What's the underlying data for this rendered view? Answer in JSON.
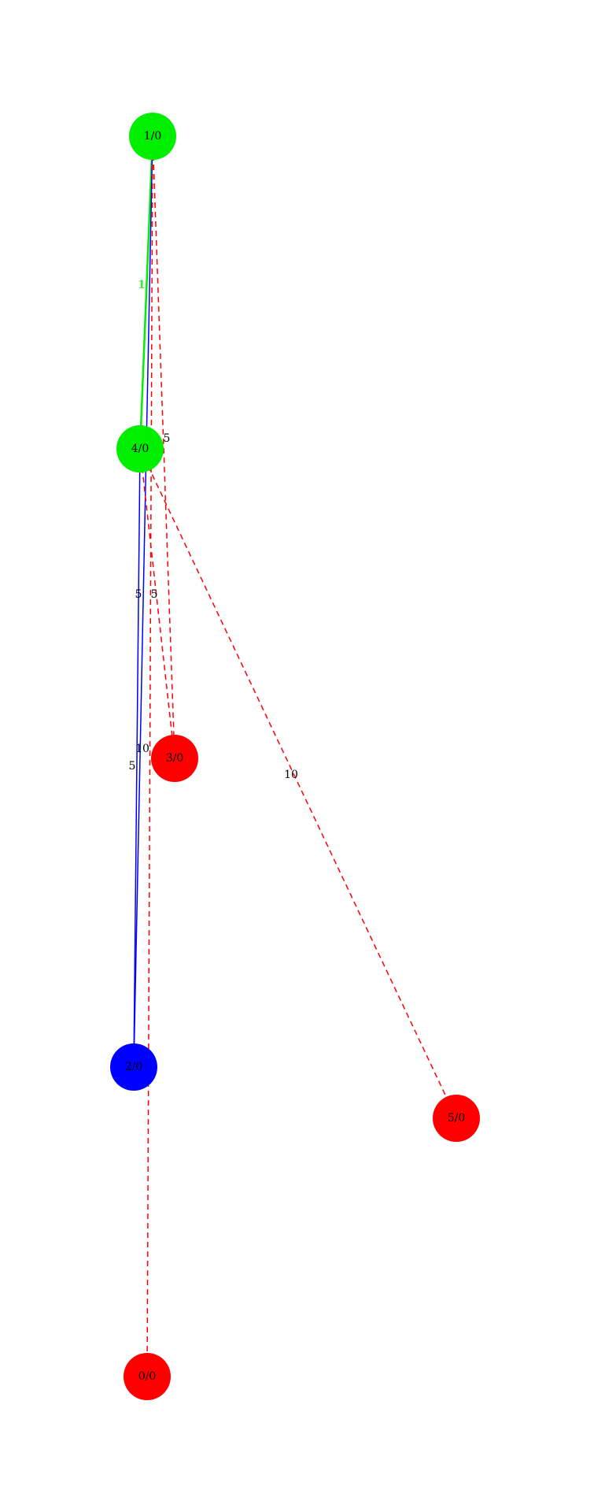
{
  "colors": {
    "green": "#00ee00",
    "blue": "#0000ff",
    "red": "#ff0000",
    "label_dark": "#000000",
    "label_green": "#33ee33"
  },
  "nodes": [
    {
      "id": "n1",
      "label": "1/0",
      "color": "green"
    },
    {
      "id": "n4",
      "label": "4/0",
      "color": "green"
    },
    {
      "id": "n3",
      "label": "3/0",
      "color": "red"
    },
    {
      "id": "n2",
      "label": "2/0",
      "color": "blue"
    },
    {
      "id": "n5",
      "label": "5/0",
      "color": "red"
    },
    {
      "id": "n0",
      "label": "0/0",
      "color": "red"
    }
  ],
  "edges": [
    {
      "id": "e1-4",
      "from": "n1",
      "to": "n4",
      "style": "solid",
      "color": "green",
      "label": "1"
    },
    {
      "id": "e1-2",
      "from": "n1",
      "to": "n2",
      "style": "solid",
      "color": "blue",
      "label": "5"
    },
    {
      "id": "e4-2",
      "from": "n4",
      "to": "n2",
      "style": "solid",
      "color": "blue",
      "label": "5"
    },
    {
      "id": "e1-3",
      "from": "n1",
      "to": "n3",
      "style": "dashed",
      "color": "red",
      "label": "5"
    },
    {
      "id": "e4-3",
      "from": "n4",
      "to": "n3",
      "style": "dashed",
      "color": "red",
      "label": "5"
    },
    {
      "id": "e4-5",
      "from": "n4",
      "to": "n5",
      "style": "dashed",
      "color": "red",
      "label": "10"
    },
    {
      "id": "e1-0",
      "from": "n1",
      "to": "n0",
      "style": "dashed",
      "color": "red",
      "label": "10"
    }
  ]
}
